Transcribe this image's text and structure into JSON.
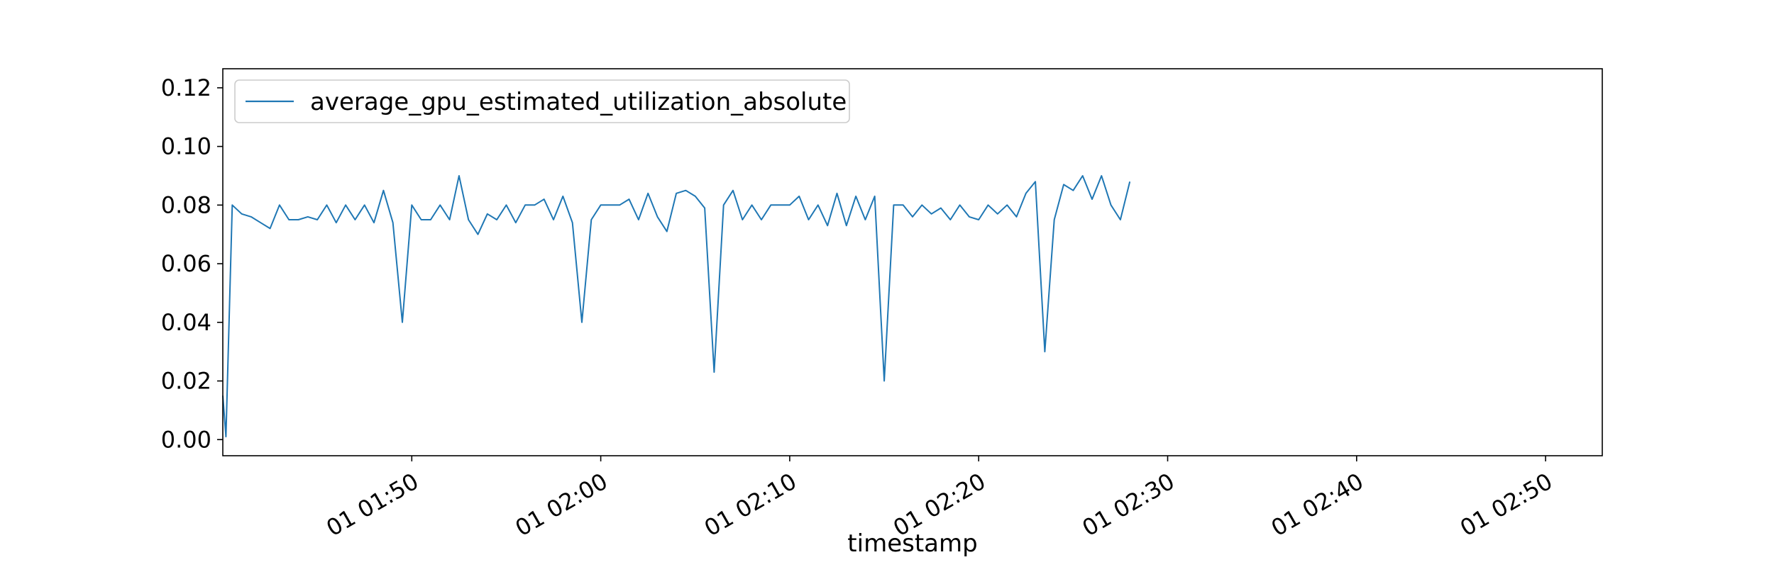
{
  "chart_data": {
    "type": "line",
    "title": "",
    "xlabel": "timestamp",
    "ylabel": "",
    "x_ticks": [
      "01 01:50",
      "01 02:00",
      "01 02:10",
      "01 02:20",
      "01 02:30",
      "01 02:40",
      "01 02:50"
    ],
    "x_tick_values": [
      "01:50",
      "02:00",
      "02:10",
      "02:20",
      "02:30",
      "02:40",
      "02:50"
    ],
    "xlim": [
      "01:40:00",
      "02:53:00"
    ],
    "y_ticks": [
      "0.00",
      "0.02",
      "0.04",
      "0.06",
      "0.08",
      "0.10",
      "0.12"
    ],
    "ylim": [
      -0.0055,
      0.1265
    ],
    "grid": false,
    "legend_position": "top-left",
    "colors": {
      "series": "#1f77b4",
      "axes": "#000000",
      "background": "#ffffff"
    },
    "series": [
      {
        "name": "average_gpu_estimated_utilization_absolute",
        "color": "#1f77b4",
        "points": [
          [
            "01:40:00",
            0.015
          ],
          [
            "01:40:10",
            0.001
          ],
          [
            "01:40:30",
            0.08
          ],
          [
            "01:41:00",
            0.077
          ],
          [
            "01:41:30",
            0.076
          ],
          [
            "01:42:00",
            0.074
          ],
          [
            "01:42:30",
            0.072
          ],
          [
            "01:43:00",
            0.08
          ],
          [
            "01:43:30",
            0.075
          ],
          [
            "01:44:00",
            0.075
          ],
          [
            "01:44:30",
            0.076
          ],
          [
            "01:45:00",
            0.075
          ],
          [
            "01:45:30",
            0.08
          ],
          [
            "01:46:00",
            0.074
          ],
          [
            "01:46:30",
            0.08
          ],
          [
            "01:47:00",
            0.075
          ],
          [
            "01:47:30",
            0.08
          ],
          [
            "01:48:00",
            0.074
          ],
          [
            "01:48:30",
            0.085
          ],
          [
            "01:49:00",
            0.074
          ],
          [
            "01:49:30",
            0.04
          ],
          [
            "01:50:00",
            0.08
          ],
          [
            "01:50:30",
            0.075
          ],
          [
            "01:51:00",
            0.075
          ],
          [
            "01:51:30",
            0.08
          ],
          [
            "01:52:00",
            0.075
          ],
          [
            "01:52:30",
            0.09
          ],
          [
            "01:53:00",
            0.075
          ],
          [
            "01:53:30",
            0.07
          ],
          [
            "01:54:00",
            0.077
          ],
          [
            "01:54:30",
            0.075
          ],
          [
            "01:55:00",
            0.08
          ],
          [
            "01:55:30",
            0.074
          ],
          [
            "01:56:00",
            0.08
          ],
          [
            "01:56:30",
            0.08
          ],
          [
            "01:57:00",
            0.082
          ],
          [
            "01:57:30",
            0.075
          ],
          [
            "01:58:00",
            0.083
          ],
          [
            "01:58:30",
            0.074
          ],
          [
            "01:59:00",
            0.04
          ],
          [
            "01:59:30",
            0.075
          ],
          [
            "02:00:00",
            0.08
          ],
          [
            "02:00:30",
            0.08
          ],
          [
            "02:01:00",
            0.08
          ],
          [
            "02:01:30",
            0.082
          ],
          [
            "02:02:00",
            0.075
          ],
          [
            "02:02:30",
            0.084
          ],
          [
            "02:03:00",
            0.076
          ],
          [
            "02:03:30",
            0.071
          ],
          [
            "02:04:00",
            0.084
          ],
          [
            "02:04:30",
            0.085
          ],
          [
            "02:05:00",
            0.083
          ],
          [
            "02:05:30",
            0.079
          ],
          [
            "02:06:00",
            0.023
          ],
          [
            "02:06:30",
            0.08
          ],
          [
            "02:07:00",
            0.085
          ],
          [
            "02:07:30",
            0.075
          ],
          [
            "02:08:00",
            0.08
          ],
          [
            "02:08:30",
            0.075
          ],
          [
            "02:09:00",
            0.08
          ],
          [
            "02:09:30",
            0.08
          ],
          [
            "02:10:00",
            0.08
          ],
          [
            "02:10:30",
            0.083
          ],
          [
            "02:11:00",
            0.075
          ],
          [
            "02:11:30",
            0.08
          ],
          [
            "02:12:00",
            0.073
          ],
          [
            "02:12:30",
            0.084
          ],
          [
            "02:13:00",
            0.073
          ],
          [
            "02:13:30",
            0.083
          ],
          [
            "02:14:00",
            0.075
          ],
          [
            "02:14:30",
            0.083
          ],
          [
            "02:15:00",
            0.02
          ],
          [
            "02:15:30",
            0.08
          ],
          [
            "02:16:00",
            0.08
          ],
          [
            "02:16:30",
            0.076
          ],
          [
            "02:17:00",
            0.08
          ],
          [
            "02:17:30",
            0.077
          ],
          [
            "02:18:00",
            0.079
          ],
          [
            "02:18:30",
            0.075
          ],
          [
            "02:19:00",
            0.08
          ],
          [
            "02:19:30",
            0.076
          ],
          [
            "02:20:00",
            0.075
          ],
          [
            "02:20:30",
            0.08
          ],
          [
            "02:21:00",
            0.077
          ],
          [
            "02:21:30",
            0.08
          ],
          [
            "02:22:00",
            0.076
          ],
          [
            "02:22:30",
            0.084
          ],
          [
            "02:23:00",
            0.088
          ],
          [
            "02:23:30",
            0.03
          ],
          [
            "02:24:00",
            0.075
          ],
          [
            "02:24:30",
            0.087
          ],
          [
            "02:25:00",
            0.085
          ],
          [
            "02:25:30",
            0.09
          ],
          [
            "02:26:00",
            0.082
          ],
          [
            "02:26:30",
            0.09
          ],
          [
            "02:27:00",
            0.08
          ],
          [
            "02:27:30",
            0.075
          ],
          [
            "02:28:00",
            0.088
          ]
        ]
      }
    ]
  }
}
